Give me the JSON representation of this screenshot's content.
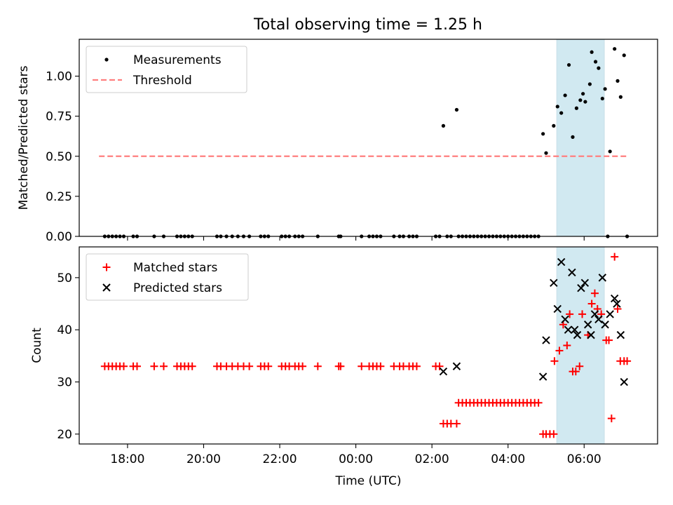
{
  "figure": {
    "title": "Total observing time = 1.25 h"
  },
  "colors": {
    "measurement": "#000000",
    "threshold": "#ff7f7f",
    "matched": "#ff0000",
    "predicted": "#000000",
    "span_fill": "#add8e6"
  },
  "chart_data": [
    {
      "type": "scatter",
      "title": "Total observing time = 1.25 h",
      "xlabel": "",
      "ylabel": "Matched/Predicted stars",
      "x_unit": "hours since 00:00 UTC (negative = previous day)",
      "xlim": [
        -7.27,
        7.93
      ],
      "ylim": [
        0.0,
        1.23
      ],
      "yticks": [
        "0.00",
        "0.25",
        "0.50",
        "0.75",
        "1.00"
      ],
      "ytick_values": [
        0,
        0.25,
        0.5,
        0.75,
        1.0
      ],
      "grid": false,
      "legend": "top-left",
      "shaded_span": [
        5.28,
        6.53
      ],
      "series": [
        {
          "name": "Measurements",
          "kind": "scatter-dot",
          "points": [
            [
              -6.6,
              0
            ],
            [
              -6.5,
              0
            ],
            [
              -6.4,
              0
            ],
            [
              -6.3,
              0
            ],
            [
              -6.2,
              0
            ],
            [
              -6.1,
              0
            ],
            [
              -5.85,
              0
            ],
            [
              -5.75,
              0
            ],
            [
              -5.3,
              0
            ],
            [
              -5.05,
              0
            ],
            [
              -4.7,
              0
            ],
            [
              -4.6,
              0
            ],
            [
              -4.5,
              0
            ],
            [
              -4.4,
              0
            ],
            [
              -4.3,
              0
            ],
            [
              -3.65,
              0
            ],
            [
              -3.55,
              0
            ],
            [
              -3.4,
              0
            ],
            [
              -3.25,
              0
            ],
            [
              -3.1,
              0
            ],
            [
              -2.95,
              0
            ],
            [
              -2.8,
              0
            ],
            [
              -2.5,
              0
            ],
            [
              -2.4,
              0
            ],
            [
              -2.3,
              0
            ],
            [
              -1.95,
              0
            ],
            [
              -1.85,
              0
            ],
            [
              -1.75,
              0
            ],
            [
              -1.6,
              0
            ],
            [
              -1.5,
              0
            ],
            [
              -1.4,
              0
            ],
            [
              -1.0,
              0
            ],
            [
              -0.45,
              0
            ],
            [
              -0.4,
              0
            ],
            [
              0.15,
              0
            ],
            [
              0.35,
              0
            ],
            [
              0.45,
              0
            ],
            [
              0.55,
              0
            ],
            [
              0.65,
              0
            ],
            [
              1.0,
              0
            ],
            [
              1.15,
              0
            ],
            [
              1.25,
              0
            ],
            [
              1.4,
              0
            ],
            [
              1.5,
              0
            ],
            [
              1.6,
              0
            ],
            [
              2.1,
              0
            ],
            [
              2.2,
              0
            ],
            [
              2.3,
              0.69
            ],
            [
              2.4,
              0
            ],
            [
              2.5,
              0
            ],
            [
              2.65,
              0.79
            ],
            [
              2.7,
              0
            ],
            [
              2.8,
              0
            ],
            [
              2.9,
              0
            ],
            [
              3.0,
              0
            ],
            [
              3.1,
              0
            ],
            [
              3.2,
              0
            ],
            [
              3.3,
              0
            ],
            [
              3.4,
              0
            ],
            [
              3.5,
              0
            ],
            [
              3.6,
              0
            ],
            [
              3.7,
              0
            ],
            [
              3.8,
              0
            ],
            [
              3.9,
              0
            ],
            [
              4.0,
              0
            ],
            [
              4.1,
              0
            ],
            [
              4.2,
              0
            ],
            [
              4.3,
              0
            ],
            [
              4.4,
              0
            ],
            [
              4.5,
              0
            ],
            [
              4.6,
              0
            ],
            [
              4.7,
              0
            ],
            [
              4.8,
              0
            ],
            [
              4.92,
              0.64
            ],
            [
              5.0,
              0.52
            ],
            [
              5.2,
              0.69
            ],
            [
              5.3,
              0.81
            ],
            [
              5.4,
              0.77
            ],
            [
              5.5,
              0.88
            ],
            [
              5.6,
              1.07
            ],
            [
              5.7,
              0.62
            ],
            [
              5.8,
              0.8
            ],
            [
              5.9,
              0.85
            ],
            [
              5.97,
              0.89
            ],
            [
              6.03,
              0.84
            ],
            [
              6.15,
              0.95
            ],
            [
              6.2,
              1.15
            ],
            [
              6.3,
              1.09
            ],
            [
              6.38,
              1.05
            ],
            [
              6.48,
              0.86
            ],
            [
              6.55,
              0.92
            ],
            [
              6.62,
              0
            ],
            [
              6.68,
              0.53
            ],
            [
              6.8,
              1.17
            ],
            [
              6.88,
              0.97
            ],
            [
              6.96,
              0.87
            ],
            [
              7.05,
              1.13
            ],
            [
              7.13,
              0
            ]
          ]
        },
        {
          "name": "Threshold",
          "kind": "dashed-line",
          "x": [
            -6.75,
            7.13
          ],
          "y": [
            0.5,
            0.5
          ]
        }
      ]
    },
    {
      "type": "scatter",
      "title": "",
      "xlabel": "Time (UTC)",
      "ylabel": "Count",
      "x_unit": "hours since 00:00 UTC (negative = previous day)",
      "xlim": [
        -7.27,
        7.93
      ],
      "ylim": [
        18.1,
        55.9
      ],
      "yticks": [
        "20",
        "30",
        "40",
        "50"
      ],
      "ytick_values": [
        20,
        30,
        40,
        50
      ],
      "xticks": [
        "18:00",
        "20:00",
        "22:00",
        "00:00",
        "02:00",
        "04:00",
        "06:00"
      ],
      "xtick_values": [
        -6,
        -4,
        -2,
        0,
        2,
        4,
        6
      ],
      "grid": false,
      "legend": "top-left",
      "shaded_span": [
        5.28,
        6.53
      ],
      "series": [
        {
          "name": "Matched stars",
          "kind": "plus",
          "points": [
            [
              -6.6,
              33
            ],
            [
              -6.5,
              33
            ],
            [
              -6.4,
              33
            ],
            [
              -6.3,
              33
            ],
            [
              -6.2,
              33
            ],
            [
              -6.1,
              33
            ],
            [
              -5.85,
              33
            ],
            [
              -5.75,
              33
            ],
            [
              -5.3,
              33
            ],
            [
              -5.05,
              33
            ],
            [
              -4.7,
              33
            ],
            [
              -4.6,
              33
            ],
            [
              -4.5,
              33
            ],
            [
              -4.4,
              33
            ],
            [
              -4.3,
              33
            ],
            [
              -3.65,
              33
            ],
            [
              -3.55,
              33
            ],
            [
              -3.4,
              33
            ],
            [
              -3.25,
              33
            ],
            [
              -3.1,
              33
            ],
            [
              -2.95,
              33
            ],
            [
              -2.8,
              33
            ],
            [
              -2.5,
              33
            ],
            [
              -2.4,
              33
            ],
            [
              -2.3,
              33
            ],
            [
              -1.95,
              33
            ],
            [
              -1.85,
              33
            ],
            [
              -1.75,
              33
            ],
            [
              -1.6,
              33
            ],
            [
              -1.5,
              33
            ],
            [
              -1.4,
              33
            ],
            [
              -1.0,
              33
            ],
            [
              -0.45,
              33
            ],
            [
              -0.4,
              33
            ],
            [
              0.15,
              33
            ],
            [
              0.35,
              33
            ],
            [
              0.45,
              33
            ],
            [
              0.55,
              33
            ],
            [
              0.65,
              33
            ],
            [
              1.0,
              33
            ],
            [
              1.15,
              33
            ],
            [
              1.25,
              33
            ],
            [
              1.4,
              33
            ],
            [
              1.5,
              33
            ],
            [
              1.6,
              33
            ],
            [
              2.1,
              33
            ],
            [
              2.2,
              33
            ],
            [
              2.3,
              22
            ],
            [
              2.4,
              22
            ],
            [
              2.5,
              22
            ],
            [
              2.65,
              22
            ],
            [
              2.7,
              26
            ],
            [
              2.8,
              26
            ],
            [
              2.9,
              26
            ],
            [
              3.0,
              26
            ],
            [
              3.1,
              26
            ],
            [
              3.2,
              26
            ],
            [
              3.3,
              26
            ],
            [
              3.4,
              26
            ],
            [
              3.5,
              26
            ],
            [
              3.6,
              26
            ],
            [
              3.7,
              26
            ],
            [
              3.8,
              26
            ],
            [
              3.9,
              26
            ],
            [
              4.0,
              26
            ],
            [
              4.1,
              26
            ],
            [
              4.2,
              26
            ],
            [
              4.3,
              26
            ],
            [
              4.4,
              26
            ],
            [
              4.5,
              26
            ],
            [
              4.6,
              26
            ],
            [
              4.7,
              26
            ],
            [
              4.8,
              26
            ],
            [
              4.92,
              20
            ],
            [
              5.0,
              20
            ],
            [
              5.1,
              20
            ],
            [
              5.2,
              20
            ],
            [
              5.22,
              34
            ],
            [
              5.35,
              36
            ],
            [
              5.45,
              41
            ],
            [
              5.55,
              37
            ],
            [
              5.62,
              43
            ],
            [
              5.7,
              32
            ],
            [
              5.78,
              32
            ],
            [
              5.88,
              33
            ],
            [
              5.95,
              43
            ],
            [
              6.1,
              39
            ],
            [
              6.2,
              45
            ],
            [
              6.28,
              47
            ],
            [
              6.35,
              44
            ],
            [
              6.45,
              43
            ],
            [
              6.58,
              38
            ],
            [
              6.65,
              38
            ],
            [
              6.72,
              23
            ],
            [
              6.8,
              54
            ],
            [
              6.88,
              44
            ],
            [
              6.95,
              34
            ],
            [
              7.05,
              34
            ],
            [
              7.13,
              34
            ]
          ]
        },
        {
          "name": "Predicted stars",
          "kind": "x",
          "points": [
            [
              2.3,
              32
            ],
            [
              2.65,
              33
            ],
            [
              4.92,
              31
            ],
            [
              5.0,
              38
            ],
            [
              5.2,
              49
            ],
            [
              5.3,
              44
            ],
            [
              5.4,
              53
            ],
            [
              5.5,
              42
            ],
            [
              5.58,
              40
            ],
            [
              5.68,
              51
            ],
            [
              5.75,
              40
            ],
            [
              5.82,
              39
            ],
            [
              5.92,
              48
            ],
            [
              6.02,
              49
            ],
            [
              6.1,
              41
            ],
            [
              6.18,
              39
            ],
            [
              6.28,
              43
            ],
            [
              6.38,
              42
            ],
            [
              6.48,
              50
            ],
            [
              6.55,
              41
            ],
            [
              6.68,
              43
            ],
            [
              6.8,
              46
            ],
            [
              6.86,
              45
            ],
            [
              6.96,
              39
            ],
            [
              7.05,
              30
            ]
          ]
        }
      ]
    }
  ]
}
